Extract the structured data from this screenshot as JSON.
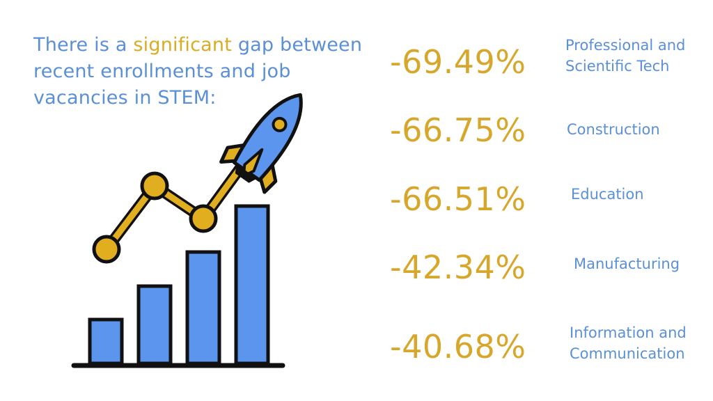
{
  "headline": {
    "before": "There is a ",
    "highlight": "significant",
    "after": " gap between recent enrollments and job vacancies in STEM:"
  },
  "colors": {
    "blue_text": "#5b8fd6",
    "gold": "#d6a72a",
    "bar_fill": "#5b95ee",
    "outline": "#111111"
  },
  "illustration": {
    "bar_levels": [
      0.28,
      0.49,
      0.71,
      1.0
    ],
    "icons": [
      "bar-chart-icon",
      "line-trend-icon",
      "rocket-icon"
    ]
  },
  "stats": [
    {
      "value": "-69.49%",
      "sector": "Professional and\nScientific Tech"
    },
    {
      "value": "-66.75%",
      "sector": "Construction"
    },
    {
      "value": "-66.51%",
      "sector": "Education"
    },
    {
      "value": "-42.34%",
      "sector": "Manufacturing"
    },
    {
      "value": "-40.68%",
      "sector": "Information and\nCommunication"
    }
  ]
}
